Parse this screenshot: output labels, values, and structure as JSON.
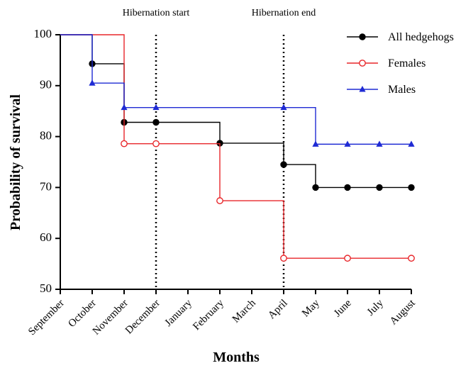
{
  "chart_data": {
    "type": "line",
    "step": true,
    "xlabel": "Months",
    "ylabel": "Probability of survival",
    "categories": [
      "September",
      "October",
      "November",
      "December",
      "January",
      "February",
      "March",
      "April",
      "May",
      "June",
      "July",
      "August"
    ],
    "yticks": [
      50,
      60,
      70,
      80,
      90,
      100
    ],
    "ylim": [
      50,
      100
    ],
    "legend_position": "top-right",
    "annotations": [
      {
        "text": "Hibernation start",
        "at": "December"
      },
      {
        "text": "Hibernation end",
        "at": "April"
      }
    ],
    "series": [
      {
        "name": "All hedgehogs",
        "color": "#000000",
        "marker": "filled-circle",
        "steps": [
          [
            0,
            100
          ],
          [
            1,
            94.3
          ],
          [
            2,
            82.8
          ],
          [
            5,
            78.7
          ],
          [
            7,
            74.5
          ],
          [
            8,
            70
          ]
        ],
        "markers": [
          [
            1,
            94.3
          ],
          [
            2,
            82.8
          ],
          [
            3,
            82.8
          ],
          [
            5,
            78.7
          ],
          [
            7,
            74.5
          ],
          [
            8,
            70
          ],
          [
            9,
            70
          ],
          [
            10,
            70
          ],
          [
            11,
            70
          ]
        ]
      },
      {
        "name": "Females",
        "color": "#e8262a",
        "marker": "open-circle",
        "steps": [
          [
            0,
            100
          ],
          [
            2,
            78.6
          ],
          [
            5,
            67.4
          ],
          [
            7,
            56.1
          ]
        ],
        "markers": [
          [
            2,
            78.6
          ],
          [
            3,
            78.6
          ],
          [
            5,
            67.4
          ],
          [
            7,
            56.1
          ],
          [
            9,
            56.1
          ],
          [
            11,
            56.1
          ]
        ]
      },
      {
        "name": "Males",
        "color": "#1f2bd4",
        "marker": "filled-triangle",
        "steps": [
          [
            0,
            100
          ],
          [
            1,
            90.5
          ],
          [
            2,
            85.7
          ],
          [
            8,
            78.5
          ]
        ],
        "markers": [
          [
            1,
            90.5
          ],
          [
            2,
            85.7
          ],
          [
            3,
            85.7
          ],
          [
            7,
            85.7
          ],
          [
            8,
            78.5
          ],
          [
            9,
            78.5
          ],
          [
            10,
            78.5
          ],
          [
            11,
            78.5
          ]
        ]
      }
    ]
  }
}
